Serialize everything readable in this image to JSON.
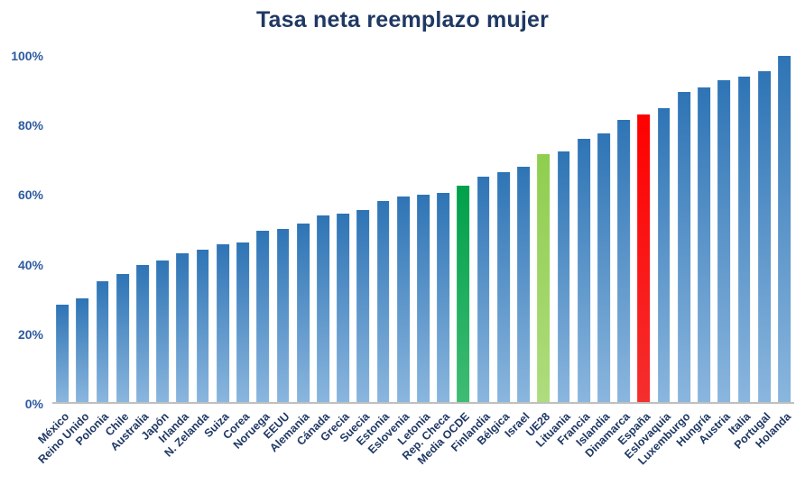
{
  "chart_data": {
    "type": "bar",
    "title": "Tasa neta reemplazo mujer",
    "xlabel": "",
    "ylabel": "",
    "ylim": [
      0,
      100
    ],
    "y_ticks": [
      "0%",
      "20%",
      "40%",
      "60%",
      "80%",
      "100%"
    ],
    "grid": false,
    "legend_position": "none",
    "categories": [
      "México",
      "Reino Unido",
      "Polonia",
      "Chile",
      "Australia",
      "Japón",
      "Irlanda",
      "N. Zelanda",
      "Suiza",
      "Corea",
      "Noruega",
      "EEUU",
      "Alemania",
      "Cánada",
      "Grecia",
      "Suecia",
      "Estonia",
      "Eslovenia",
      "Letonia",
      "Rep. Checa",
      "Media OCDE",
      "Finlandia",
      "Bélgica",
      "Israel",
      "UE28",
      "Lituania",
      "Francia",
      "Islandia",
      "Dinamarca",
      "España",
      "Eslovaquia",
      "Luxemburgo",
      "Hungría",
      "Austria",
      "Italia",
      "Portugal",
      "Holanda"
    ],
    "values": [
      28,
      30,
      35,
      37,
      39.5,
      41,
      43,
      44,
      45.5,
      46,
      49.5,
      50,
      51.5,
      54,
      54.5,
      55.5,
      58,
      59.5,
      60,
      60.5,
      62.5,
      65,
      66.5,
      68,
      71.5,
      72.5,
      76,
      77.5,
      81.5,
      83,
      85,
      89.5,
      91,
      93,
      94,
      95.5,
      100
    ],
    "colors": [
      "blue",
      "blue",
      "blue",
      "blue",
      "blue",
      "blue",
      "blue",
      "blue",
      "blue",
      "blue",
      "blue",
      "blue",
      "blue",
      "blue",
      "blue",
      "blue",
      "blue",
      "blue",
      "blue",
      "blue",
      "green",
      "blue",
      "blue",
      "blue",
      "lightgreen",
      "blue",
      "blue",
      "blue",
      "blue",
      "red",
      "blue",
      "blue",
      "blue",
      "blue",
      "blue",
      "blue",
      "blue"
    ],
    "palette": {
      "blue_top": "#2E74B5",
      "blue_bottom": "#8AB6DE",
      "green_top": "#00A04A",
      "green_bottom": "#3FBC74",
      "lightgreen_top": "#8FCE4E",
      "lightgreen_bottom": "#AEDC7E",
      "red_top": "#FF0000",
      "red_bottom": "#F52E2E",
      "title_color": "#1F3864",
      "y_tick_color": "#2E5B9F",
      "x_label_color": "#1F3864",
      "axis_line_color": "#BFBFBF"
    }
  }
}
